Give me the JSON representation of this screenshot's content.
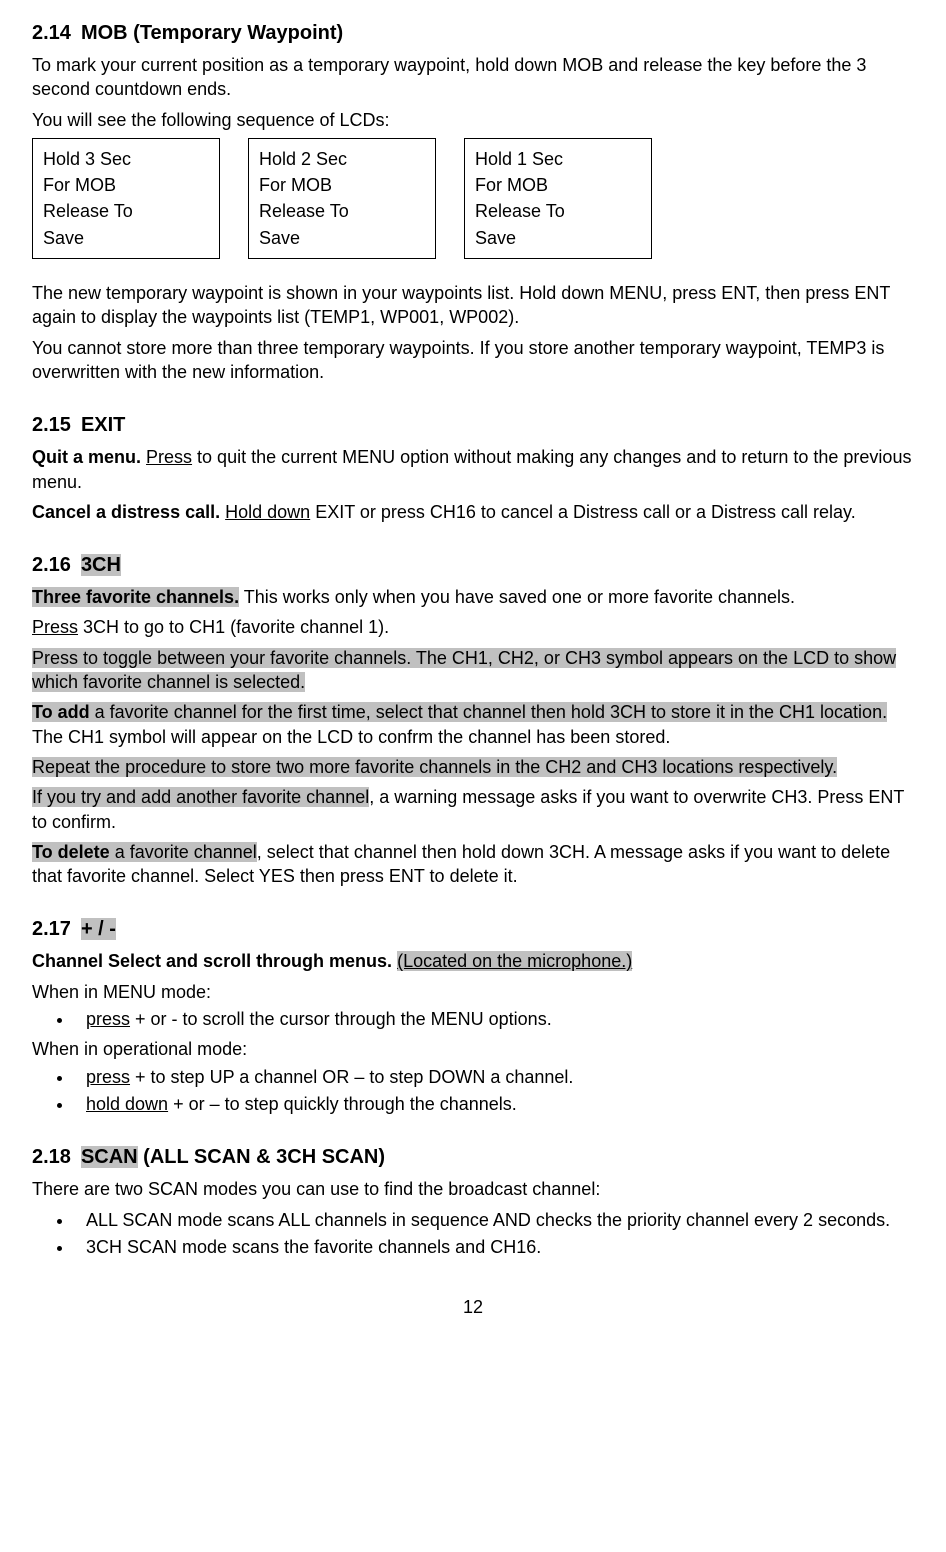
{
  "sections": {
    "s214": {
      "number": "2.14",
      "title": "MOB (Temporary Waypoint)",
      "p1": "To mark your current position as a temporary waypoint, hold down MOB and release the key before the 3 second countdown ends.",
      "p2": "You will see the following sequence of LCDs:",
      "lcd": [
        {
          "l1": "Hold 3 Sec",
          "l2": "For MOB",
          "l3": "Release To",
          "l4": "Save"
        },
        {
          "l1": "Hold 2 Sec",
          "l2": "For MOB",
          "l3": "Release To",
          "l4": "Save"
        },
        {
          "l1": "Hold 1 Sec",
          "l2": "For MOB",
          "l3": "Release To",
          "l4": "Save"
        }
      ],
      "p3": "The new temporary waypoint is shown in your waypoints list. Hold down MENU, press ENT, then press ENT again to display the waypoints list (TEMP1, WP001, WP002).",
      "p4": "You cannot store more than three temporary waypoints. If you store another temporary waypoint, TEMP3 is overwritten with the new information."
    },
    "s215": {
      "number": "2.15",
      "title": "EXIT",
      "quit_bold": "Quit a menu.",
      "quit_press": "Press",
      "quit_rest": " to quit the current MENU option without making any changes and to return to the previous menu.",
      "cancel_bold": "Cancel a distress call.",
      "cancel_hold": "Hold down",
      "cancel_rest": " EXIT or press CH16 to cancel a Distress call or a Distress call relay."
    },
    "s216": {
      "number": "2.16",
      "title": "3CH",
      "l1_bold": "Three favorite channels.",
      "l1_rest": " This works only when you have saved one or more favorite channels.",
      "l2_press": "Press",
      "l2_rest": " 3CH to go to CH1 (favorite channel 1).",
      "l3": "Press to toggle between your favorite channels. The CH1, CH2, or CH3 symbol appears on the LCD to show which favorite channel is selected.",
      "l4_bold": "To add",
      "l4_rest1": " a favorite channel for the first time, select that channel then hold 3CH to store it in the CH1 location.",
      "l4_rest2": " The CH1 symbol will appear on the LCD to confrm the channel has been stored.",
      "l5": "Repeat the procedure to store two more favorite channels in the CH2 and CH3 locations respectively.",
      "l6a": "If you try and add another favorite channel",
      "l6b": ", a warning message asks if you want to overwrite CH3. Press ENT to confirm.",
      "l7_bold": "To delete",
      "l7_hl": " a favorite channel",
      "l7_rest": ", select that channel then hold down 3CH. A message asks if you want to delete that favorite channel. Select YES then press ENT to delete it."
    },
    "s217": {
      "number": "2.17",
      "title": "+ / -",
      "l1_bold": "Channel Select and scroll through menus.",
      "l1_hl": "(Located on the microphone.)",
      "l2": "When in MENU mode:",
      "b1_press": "press",
      "b1_rest": " + or - to scroll the cursor through the MENU options.",
      "l3": "When in operational mode:",
      "b2_press": "press",
      "b2_rest": " + to step UP a channel OR – to step DOWN a channel.",
      "b3_hold": "hold down",
      "b3_rest": " + or – to step quickly through the channels."
    },
    "s218": {
      "number": "2.18",
      "title_hl": "SCAN",
      "title_rest": " (ALL SCAN & 3CH SCAN)",
      "l1": "There are two SCAN modes you can use to find the broadcast channel:",
      "b1": "ALL SCAN mode scans ALL channels in sequence AND checks the priority channel every 2 seconds.",
      "b2": "3CH SCAN mode scans the favorite channels and CH16."
    }
  },
  "page_number": "12"
}
